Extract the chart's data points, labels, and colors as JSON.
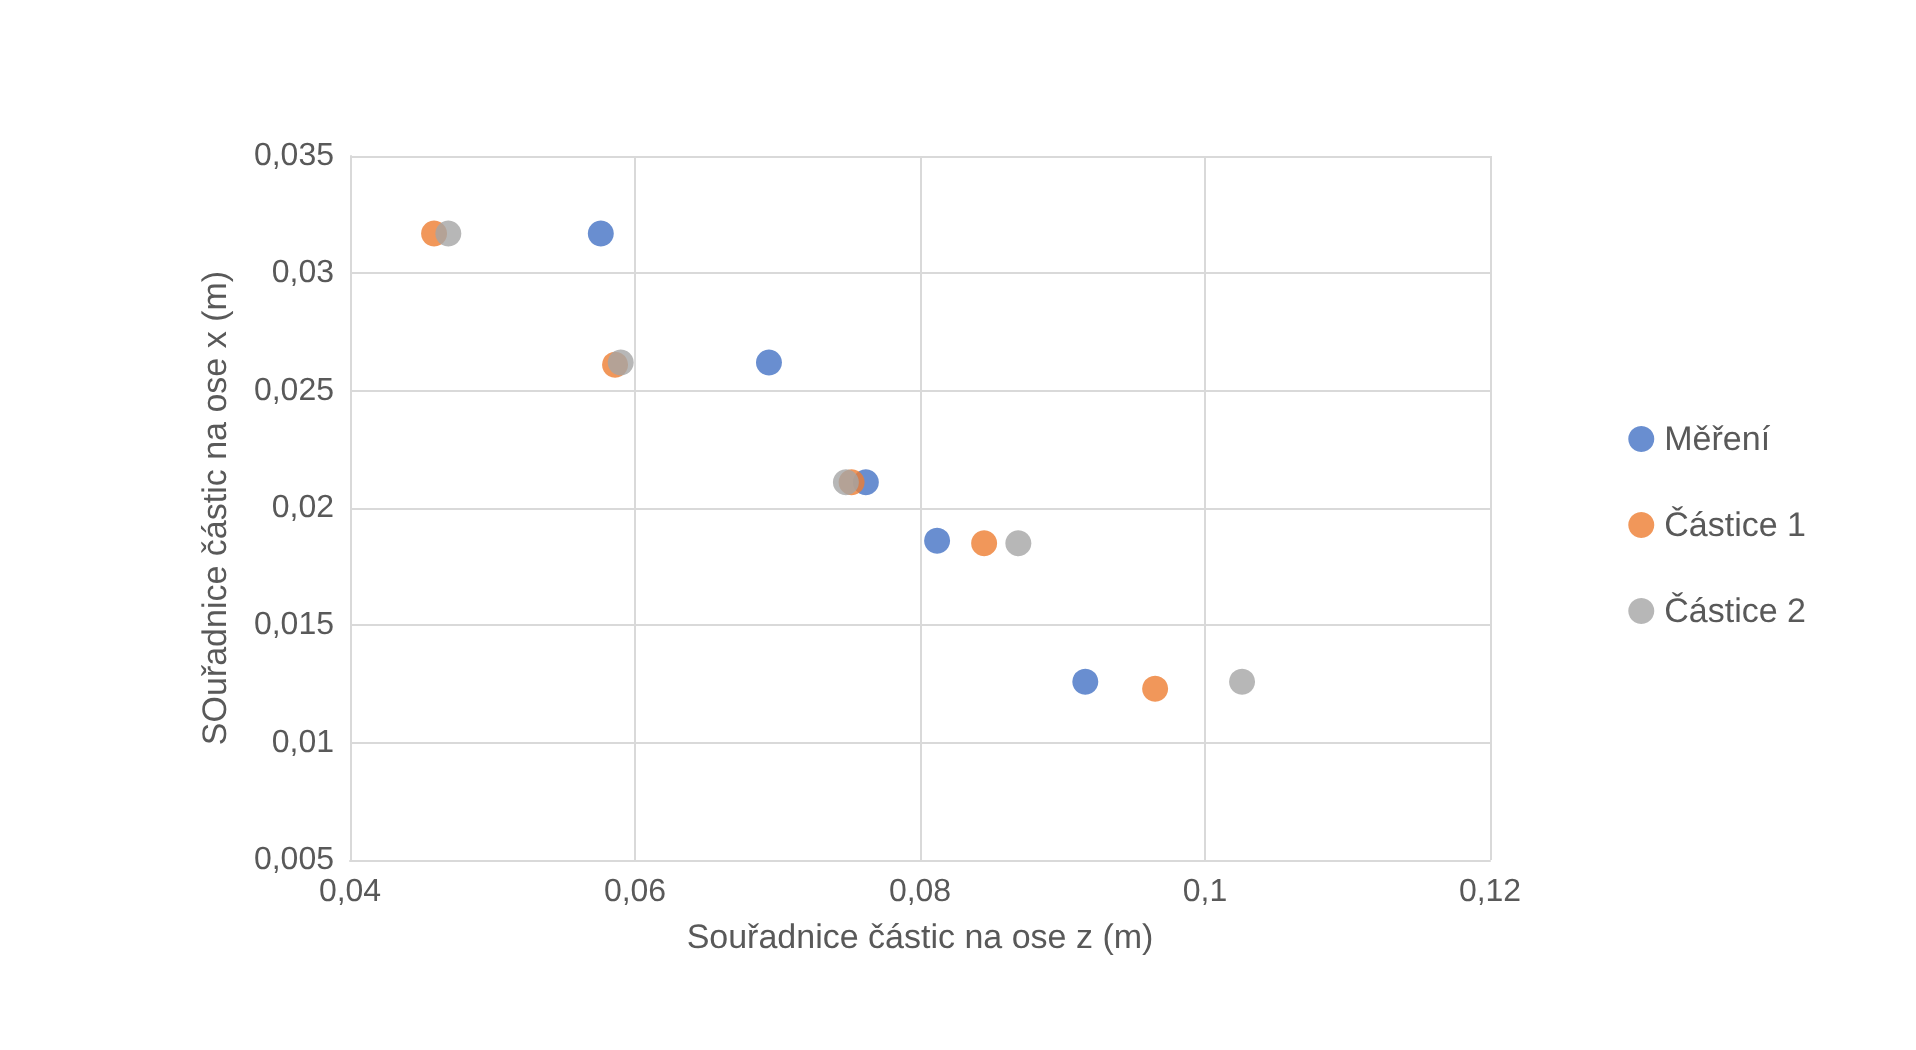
{
  "chart_data": {
    "type": "scatter",
    "xlabel": "Souřadnice částic na ose z (m)",
    "ylabel": "SOuřadnice částic na ose x (m)",
    "xlim": [
      0.04,
      0.12
    ],
    "xticks": [
      {
        "value": 0.04,
        "label": "0,04"
      },
      {
        "value": 0.06,
        "label": "0,06"
      },
      {
        "value": 0.08,
        "label": "0,08"
      },
      {
        "value": 0.1,
        "label": "0,1"
      },
      {
        "value": 0.12,
        "label": "0,12"
      }
    ],
    "ylim": [
      0.005,
      0.035
    ],
    "yticks": [
      {
        "value": 0.005,
        "label": "0,005"
      },
      {
        "value": 0.01,
        "label": "0,01"
      },
      {
        "value": 0.015,
        "label": "0,015"
      },
      {
        "value": 0.02,
        "label": "0,02"
      },
      {
        "value": 0.025,
        "label": "0,025"
      },
      {
        "value": 0.03,
        "label": "0,03"
      },
      {
        "value": 0.035,
        "label": "0,035"
      }
    ],
    "grid": true,
    "legend": "right",
    "marker": "circle",
    "series": [
      {
        "name": "Měření",
        "color": "#4472c4",
        "x": [
          0.0576,
          0.0694,
          0.0762,
          0.0812,
          0.0916
        ],
        "values": [
          0.0317,
          0.0262,
          0.0211,
          0.0186,
          0.0126
        ]
      },
      {
        "name": "Částice 1",
        "color": "#ed7d31",
        "x": [
          0.0459,
          0.0586,
          0.0752,
          0.0845,
          0.0965
        ],
        "values": [
          0.0317,
          0.0261,
          0.0211,
          0.0185,
          0.0123
        ]
      },
      {
        "name": "Částice 2",
        "color": "#a5a5a5",
        "x": [
          0.0469,
          0.059,
          0.0748,
          0.0869,
          0.1026
        ],
        "values": [
          0.0317,
          0.0262,
          0.0211,
          0.0185,
          0.0126
        ]
      }
    ]
  }
}
